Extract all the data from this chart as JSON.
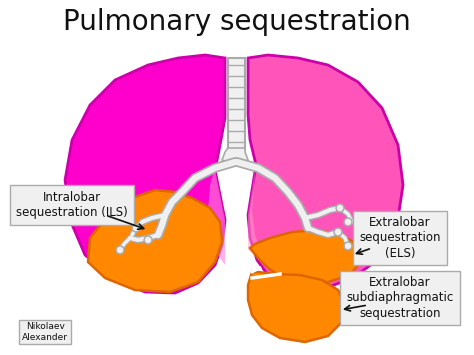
{
  "title": "Pulmonary sequestration",
  "title_fontsize": 20,
  "bg_color": "#ffffff",
  "lung_magenta": "#FF00CC",
  "lung_pink": "#FF55BB",
  "lung_outline": "#CC00AA",
  "lung_lobe_pink": "#FF80DD",
  "orange_color": "#FF8800",
  "orange_dark": "#DD6600",
  "trachea_fill": "#F0F0F0",
  "trachea_outline": "#AAAAAA",
  "label_ILS": "Intralobar\nsequestration (ILS)",
  "label_ELS": "Extralobar\nsequestration\n(ELS)",
  "label_ELS2": "Extralobar\nsubdiaphragmatic\nsequestration",
  "credit": "Nikolaev\nAlexander",
  "box_fill": "#F0F0F0",
  "box_edge": "#AAAAAA",
  "text_color": "#111111",
  "arrow_color": "#111111"
}
